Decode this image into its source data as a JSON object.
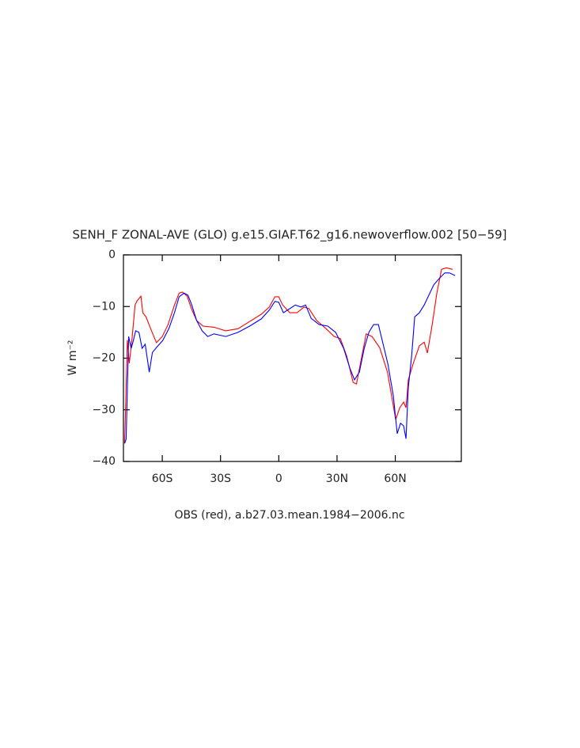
{
  "chart_data": {
    "type": "line",
    "title": "SENH_F ZONAL-AVE (GLO) g.e15.GIAF.T62_g16.newoverflow.002 [50−59]",
    "xlabel": "OBS (red), a.b27.03.mean.1984−2006.nc",
    "ylabel": "W m⁻²",
    "xlim": [
      -80,
      94
    ],
    "ylim": [
      -40,
      0
    ],
    "xticks": [
      {
        "value": -60,
        "label": "60S"
      },
      {
        "value": -30,
        "label": "30S"
      },
      0,
      {
        "value": 30,
        "label": "30N"
      },
      {
        "value": 60,
        "label": "60N"
      }
    ],
    "yticks": [
      {
        "value": -40,
        "label": "−40"
      },
      {
        "value": -30,
        "label": "−30"
      },
      {
        "value": -20,
        "label": "−20"
      },
      {
        "value": -10,
        "label": "−10"
      },
      0
    ],
    "series": [
      {
        "color": "#ff0000",
        "x": [
          -79.4,
          -78,
          -77,
          -75.5,
          -74,
          -73,
          -71,
          -70,
          -68.4,
          -66,
          -63,
          -60,
          -57,
          -53.7,
          -51.3,
          -49.7,
          -47.2,
          -45,
          -42.3,
          -39,
          -33.4,
          -27.3,
          -21,
          -15,
          -9,
          -4.9,
          -2,
          0,
          2,
          5.7,
          9.4,
          13,
          15.5,
          19.5,
          24.4,
          28.5,
          31.7,
          35,
          38.3,
          40,
          42,
          45,
          48,
          52,
          56,
          60.2,
          62.3,
          64.3,
          65.5,
          66.7,
          69.2,
          72.4,
          74.9,
          76.5,
          79,
          81.4,
          83.8,
          86.3,
          89.5
        ],
        "values": [
          -36.5,
          -16.5,
          -21,
          -16,
          -9.7,
          -8.9,
          -8,
          -11.2,
          -12,
          -14.3,
          -17,
          -15.8,
          -13.5,
          -9.7,
          -7.4,
          -7.2,
          -8,
          -10.4,
          -12.7,
          -13.8,
          -14,
          -14.7,
          -14.3,
          -12.9,
          -11.5,
          -10.1,
          -8.1,
          -8.1,
          -9.7,
          -11.2,
          -11.2,
          -10.1,
          -10.4,
          -12.7,
          -14.3,
          -15.8,
          -16.2,
          -19.6,
          -24.7,
          -25,
          -21.1,
          -15.3,
          -15.8,
          -18,
          -22.7,
          -31.9,
          -29.6,
          -28.5,
          -29.6,
          -24.2,
          -21.1,
          -17.6,
          -16.9,
          -19,
          -13.5,
          -7.4,
          -2.8,
          -2.5,
          -2.8
        ]
      },
      {
        "color": "#0000ff",
        "x": [
          -79.4,
          -78.6,
          -77.3,
          -76,
          -74.9,
          -73.7,
          -72,
          -70.4,
          -68.8,
          -66.7,
          -65.1,
          -62.7,
          -59.8,
          -56.6,
          -53.7,
          -51.3,
          -48.8,
          -46.8,
          -44.8,
          -42.3,
          -39.5,
          -36.6,
          -33.4,
          -27.3,
          -21,
          -15,
          -9,
          -4.9,
          -2,
          0,
          2.4,
          5.7,
          8.5,
          11.4,
          13.8,
          16.7,
          20.8,
          25.2,
          29.3,
          33.4,
          36.6,
          39,
          41.5,
          44,
          46.4,
          48.8,
          51.3,
          53.3,
          56.2,
          59,
          61,
          62.7,
          64.3,
          65.5,
          66.7,
          68.4,
          70,
          72.4,
          74.9,
          77.3,
          79.8,
          82.6,
          85.5,
          87.9,
          90.8
        ],
        "values": [
          -36.5,
          -35.7,
          -15.8,
          -18.1,
          -16.6,
          -14.7,
          -15,
          -18.1,
          -17.3,
          -22.7,
          -18.9,
          -17.8,
          -16.6,
          -14.3,
          -11.2,
          -8.1,
          -7.4,
          -7.8,
          -9.7,
          -12.7,
          -14.7,
          -15.8,
          -15.3,
          -15.8,
          -15,
          -13.8,
          -12.4,
          -10.7,
          -9,
          -9.2,
          -11.2,
          -10.4,
          -9.7,
          -10.1,
          -9.7,
          -12.3,
          -13.5,
          -13.8,
          -15,
          -18.1,
          -21.9,
          -24.2,
          -22.7,
          -18.1,
          -15,
          -13.5,
          -13.5,
          -16.6,
          -21.1,
          -27.3,
          -34.6,
          -32.6,
          -33.1,
          -35.6,
          -25.7,
          -19.6,
          -12,
          -11.2,
          -9.7,
          -7.8,
          -5.8,
          -4.6,
          -3.5,
          -3.5,
          -4
        ]
      }
    ]
  }
}
